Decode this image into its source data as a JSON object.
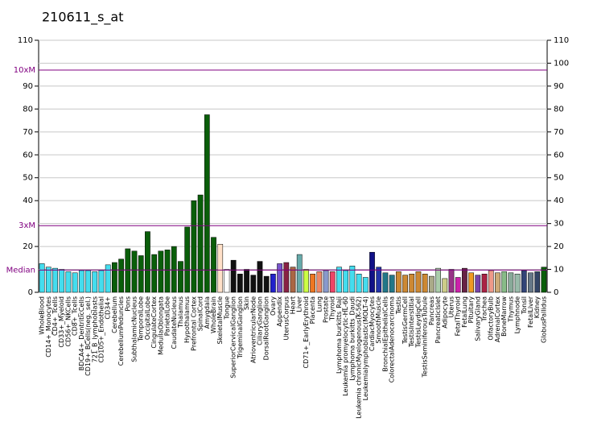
{
  "chart_data": {
    "type": "bar",
    "title": "210611_s_at",
    "categories": [
      "WholeBlood",
      "CD14+_Monocytes",
      "CD4+_Tcells",
      "CD33+_Myeloid",
      "CD56+_NKCells",
      "CD8+_Tcells",
      "BDCA4+_DentriticCells",
      "CD19+_BCells(neg._sel.)",
      "721_B_lymphoblasts",
      "CD105+_Endothelial",
      "CD34+",
      "Cerebellum",
      "CerebellumPeduncles",
      "Pons",
      "SubthalamicNucleus",
      "TemporalLobe",
      "OccipitalLobe",
      "CingulateCortex",
      "MedullaOblongata",
      "ParietalLobe",
      "CaudateNucleus",
      "Thalamus",
      "Hypothalamus",
      "Prefrontal Cortex",
      "SpinalCord",
      "Amygdala",
      "WholeBrain",
      "SkeletalMuscle",
      "Tongue",
      "SuperiorCervicalGanglion",
      "TrigeminalGanglion",
      "Skin",
      "AtrioventricularNode",
      "CiliaryGanglion",
      "DorsalRootGanglion",
      "Ovary",
      "Appendix",
      "UterusCorpus",
      "Heart",
      "Liver",
      "CD71+_EarlyErythroid",
      "Placenta",
      "Lung",
      "Prostate",
      "Thyroid",
      "Lymphoma burkitts_Raji",
      "Leukemia promyelocytic-HL-60",
      "Lymphoma burkitts_Daudi",
      "Leukemia chronicMyelogenous(K-562)",
      "Leukemialymphoblastic(MOLT-4)",
      "CardiacMyocytes",
      "SmoothMuscle",
      "BronchialEpithelialCells",
      "ColorectalAdenocarcinoma",
      "Testis",
      "TestisGermCell",
      "TestisInterstitial",
      "TestisLeydigCell",
      "TestisSeminiferousTubule",
      "Pancreas",
      "PancreaticIslet",
      "Adipocyte",
      "Uterus",
      "FetalThyroid",
      "FetalLung",
      "Pituitary",
      "SalivaryGland",
      "Trachea",
      "OlfactoryBulb",
      "AdrenalCortex",
      "BoneMarrow",
      "Thymus",
      "Lymphnode",
      "Tonsil",
      "FetalLiver",
      "Kidney",
      "GlobusPallidus"
    ],
    "values": [
      12.5,
      11,
      10.5,
      10,
      9,
      8.5,
      9.5,
      9.5,
      9,
      9.5,
      12,
      13,
      14.5,
      19,
      18,
      16,
      26.5,
      16.5,
      18,
      18.5,
      20,
      13.5,
      28.5,
      40,
      42.5,
      77.5,
      24,
      21,
      10,
      14,
      8,
      10,
      7.5,
      13.5,
      7,
      8,
      12.5,
      13,
      11,
      16.5,
      10,
      8,
      9,
      9.5,
      9,
      11,
      9.5,
      11.5,
      8,
      6.5,
      17.5,
      11,
      8.5,
      7.5,
      9,
      7.5,
      8,
      9,
      8,
      7,
      10.5,
      6,
      10,
      6.5,
      10.5,
      8.5,
      7.5,
      8,
      9.5,
      8.5,
      9,
      8.5,
      8,
      9.5,
      8.5,
      9,
      11
    ],
    "colors": [
      "#44ddee",
      "#44ddee",
      "#44ddee",
      "#44ddee",
      "#44ddee",
      "#44ddee",
      "#44ddee",
      "#44ddee",
      "#44ddee",
      "#44ddee",
      "#44ddee",
      "#0a5e0a",
      "#0a5e0a",
      "#0a5e0a",
      "#0a5e0a",
      "#0a5e0a",
      "#0a5e0a",
      "#0a5e0a",
      "#0a5e0a",
      "#0a5e0a",
      "#0a5e0a",
      "#0a5e0a",
      "#0a5e0a",
      "#0a5e0a",
      "#0a5e0a",
      "#0a5e0a",
      "#0a5e0a",
      "#ffe0c8",
      "#ffffff",
      "#111111",
      "#111111",
      "#111111",
      "#111111",
      "#111111",
      "#111111",
      "#2222cc",
      "#7755cc",
      "#882244",
      "#aa6644",
      "#66aaaa",
      "#ccff44",
      "#ee7722",
      "#ee8866",
      "#8899cc",
      "#ee4466",
      "#44ddee",
      "#44ddee",
      "#44ddee",
      "#44ddee",
      "#44ddee",
      "#111188",
      "#2233aa",
      "#227788",
      "#227788",
      "#cc8833",
      "#cc8833",
      "#cc8833",
      "#cc8833",
      "#cc8833",
      "#aaaa88",
      "#aaccaa",
      "#cccc88",
      "#993388",
      "#cc22aa",
      "#662244",
      "#ee9922",
      "#7744aa",
      "#aa2244",
      "#ee9988",
      "#ccaa77",
      "#88bb88",
      "#88aa99",
      "#99bbaa",
      "#334477",
      "#667788",
      "#334466",
      "#0a5e0a"
    ],
    "ylim": [
      0,
      110
    ],
    "yticks": [
      0,
      20,
      40,
      50,
      60,
      70,
      80,
      90,
      110
    ],
    "y2lim": [
      0,
      110
    ],
    "y2ticks": [
      0,
      10,
      20,
      30,
      40,
      50,
      60,
      70,
      80,
      90,
      100,
      110
    ],
    "reference_lines": [
      {
        "value": 9.7,
        "label": "Median"
      },
      {
        "value": 29.1,
        "label": "3xM"
      },
      {
        "value": 97,
        "label": "10xM"
      }
    ],
    "reference_color": "#800080",
    "grid": true
  }
}
